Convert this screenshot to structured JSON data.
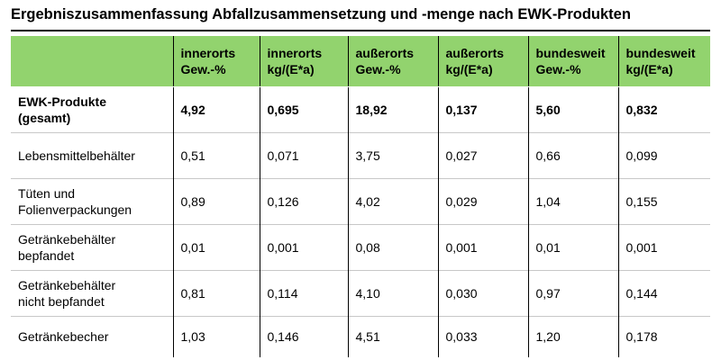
{
  "page": {
    "title": "Ergebniszusammenfassung Abfallzusammensetzung und -menge nach EWK-Produkten"
  },
  "colors": {
    "header_bg": "#92d36e",
    "row_divider": "#c8c8c8"
  },
  "table": {
    "headers": [
      "",
      [
        "innerorts",
        "Gew.-%"
      ],
      [
        "innerorts",
        "kg/(E*a)"
      ],
      [
        "außerorts",
        "Gew.-%"
      ],
      [
        "außerorts",
        "kg/(E*a)"
      ],
      [
        "bundesweit",
        "Gew.-%"
      ],
      [
        "bundesweit",
        "kg/(E*a)"
      ]
    ],
    "rows": [
      {
        "label": [
          "EWK-Produkte",
          "(gesamt)"
        ],
        "values": [
          "4,92",
          "0,695",
          "18,92",
          "0,137",
          "5,60",
          "0,832"
        ]
      },
      {
        "label": [
          "Lebensmittelbehälter"
        ],
        "values": [
          "0,51",
          "0,071",
          "3,75",
          "0,027",
          "0,66",
          "0,099"
        ]
      },
      {
        "label": [
          "Tüten und",
          "Folienverpackungen"
        ],
        "values": [
          "0,89",
          "0,126",
          "4,02",
          "0,029",
          "1,04",
          "0,155"
        ]
      },
      {
        "label": [
          "Getränkebehälter",
          "bepfandet"
        ],
        "values": [
          "0,01",
          "0,001",
          "0,08",
          "0,001",
          "0,01",
          "0,001"
        ]
      },
      {
        "label": [
          "Getränkebehälter",
          "nicht bepfandet"
        ],
        "values": [
          "0,81",
          "0,114",
          "4,10",
          "0,030",
          "0,97",
          "0,144"
        ]
      },
      {
        "label": [
          "Getränkebecher"
        ],
        "values": [
          "1,03",
          "0,146",
          "4,51",
          "0,033",
          "1,20",
          "0,178"
        ]
      }
    ]
  }
}
